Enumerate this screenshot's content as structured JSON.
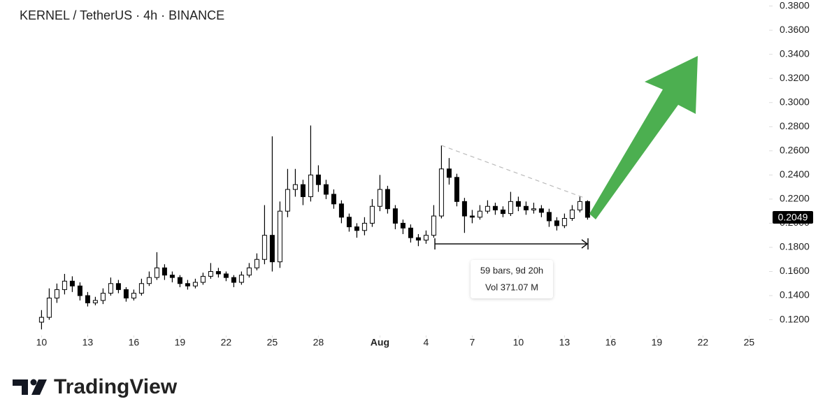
{
  "chart_data": {
    "type": "candlestick",
    "title": "KERNEL / TetherUS · 4h · BINANCE",
    "x": [
      0,
      0.5,
      1,
      1.5,
      2,
      2.5,
      3,
      3.5,
      4,
      4.5,
      5,
      5.5,
      6,
      6.5,
      7,
      7.5,
      8,
      8.5,
      9,
      9.5,
      10,
      10.5,
      11,
      11.5,
      12,
      12.5,
      13,
      13.5,
      14,
      14.5,
      15,
      15.5,
      16,
      16.5,
      17,
      17.5,
      18,
      18.5,
      19,
      19.5,
      20,
      20.5,
      21,
      21.5,
      22,
      22.5,
      23,
      23.5,
      24,
      24.5,
      25,
      25.5,
      26,
      26.5,
      27,
      27.5,
      28,
      28.5,
      29,
      29.5,
      30,
      30.5,
      31,
      31.5,
      32,
      32.5,
      33,
      33.5,
      34,
      34.5,
      35,
      35.5
    ],
    "open": [
      0.118,
      0.122,
      0.138,
      0.145,
      0.152,
      0.148,
      0.14,
      0.134,
      0.136,
      0.142,
      0.15,
      0.145,
      0.138,
      0.142,
      0.15,
      0.155,
      0.163,
      0.157,
      0.155,
      0.15,
      0.148,
      0.151,
      0.156,
      0.16,
      0.158,
      0.155,
      0.151,
      0.157,
      0.163,
      0.17,
      0.19,
      0.168,
      0.21,
      0.228,
      0.232,
      0.222,
      0.24,
      0.232,
      0.224,
      0.216,
      0.205,
      0.197,
      0.194,
      0.2,
      0.214,
      0.228,
      0.212,
      0.2,
      0.196,
      0.188,
      0.186,
      0.19,
      0.206,
      0.245,
      0.238,
      0.218,
      0.206,
      0.205,
      0.21,
      0.214,
      0.211,
      0.208,
      0.218,
      0.214,
      0.211,
      0.212,
      0.209,
      0.202,
      0.198,
      0.204,
      0.211,
      0.218
    ],
    "high": [
      0.128,
      0.146,
      0.15,
      0.158,
      0.156,
      0.151,
      0.143,
      0.139,
      0.146,
      0.155,
      0.153,
      0.147,
      0.145,
      0.154,
      0.16,
      0.176,
      0.166,
      0.16,
      0.157,
      0.153,
      0.154,
      0.159,
      0.167,
      0.163,
      0.16,
      0.157,
      0.16,
      0.167,
      0.175,
      0.215,
      0.272,
      0.218,
      0.245,
      0.245,
      0.236,
      0.281,
      0.248,
      0.236,
      0.228,
      0.219,
      0.208,
      0.2,
      0.205,
      0.22,
      0.24,
      0.231,
      0.215,
      0.203,
      0.199,
      0.191,
      0.194,
      0.215,
      0.2645,
      0.254,
      0.241,
      0.221,
      0.211,
      0.215,
      0.219,
      0.217,
      0.214,
      0.226,
      0.222,
      0.218,
      0.217,
      0.215,
      0.212,
      0.205,
      0.208,
      0.215,
      0.222,
      0.219
    ],
    "low": [
      0.112,
      0.12,
      0.134,
      0.141,
      0.143,
      0.136,
      0.131,
      0.132,
      0.133,
      0.14,
      0.142,
      0.135,
      0.136,
      0.14,
      0.148,
      0.153,
      0.153,
      0.151,
      0.147,
      0.145,
      0.146,
      0.149,
      0.154,
      0.155,
      0.152,
      0.147,
      0.149,
      0.155,
      0.161,
      0.166,
      0.16,
      0.163,
      0.205,
      0.222,
      0.215,
      0.218,
      0.226,
      0.22,
      0.212,
      0.2,
      0.193,
      0.188,
      0.19,
      0.197,
      0.21,
      0.208,
      0.195,
      0.191,
      0.184,
      0.181,
      0.183,
      0.188,
      0.204,
      0.232,
      0.214,
      0.192,
      0.2,
      0.203,
      0.208,
      0.207,
      0.205,
      0.206,
      0.21,
      0.207,
      0.208,
      0.205,
      0.197,
      0.194,
      0.196,
      0.202,
      0.209,
      0.203
    ],
    "close": [
      0.122,
      0.138,
      0.145,
      0.152,
      0.148,
      0.14,
      0.134,
      0.136,
      0.142,
      0.15,
      0.145,
      0.138,
      0.142,
      0.15,
      0.155,
      0.163,
      0.157,
      0.155,
      0.15,
      0.148,
      0.151,
      0.156,
      0.16,
      0.158,
      0.155,
      0.151,
      0.157,
      0.163,
      0.17,
      0.19,
      0.168,
      0.21,
      0.228,
      0.232,
      0.222,
      0.24,
      0.232,
      0.224,
      0.216,
      0.205,
      0.197,
      0.194,
      0.2,
      0.214,
      0.228,
      0.212,
      0.2,
      0.196,
      0.188,
      0.186,
      0.19,
      0.206,
      0.245,
      0.238,
      0.218,
      0.206,
      0.205,
      0.21,
      0.214,
      0.211,
      0.208,
      0.218,
      0.214,
      0.211,
      0.212,
      0.209,
      0.202,
      0.198,
      0.204,
      0.211,
      0.218,
      0.2049
    ],
    "up_color": "#ffffff",
    "down_color": "#000000",
    "wick_color": "#000000",
    "xlim": [
      -2.7,
      47.3
    ],
    "xticks": [
      {
        "value": 0,
        "label": "10"
      },
      {
        "value": 3,
        "label": "13"
      },
      {
        "value": 6,
        "label": "16"
      },
      {
        "value": 9,
        "label": "19"
      },
      {
        "value": 12,
        "label": "22"
      },
      {
        "value": 15,
        "label": "25"
      },
      {
        "value": 18,
        "label": "28"
      },
      {
        "value": 22,
        "label": "Aug"
      },
      {
        "value": 25,
        "label": "4"
      },
      {
        "value": 28,
        "label": "7"
      },
      {
        "value": 31,
        "label": "10"
      },
      {
        "value": 34,
        "label": "13"
      },
      {
        "value": 37,
        "label": "16"
      },
      {
        "value": 40,
        "label": "19"
      },
      {
        "value": 43,
        "label": "22"
      },
      {
        "value": 46,
        "label": "25"
      }
    ],
    "ylim": [
      0.107,
      0.385
    ],
    "yticks": [
      {
        "value": 0.12,
        "label": "0.1200"
      },
      {
        "value": 0.14,
        "label": "0.1400"
      },
      {
        "value": 0.16,
        "label": "0.1600"
      },
      {
        "value": 0.18,
        "label": "0.1800"
      },
      {
        "value": 0.2,
        "label": "0.2000"
      },
      {
        "value": 0.22,
        "label": "0.2200"
      },
      {
        "value": 0.24,
        "label": "0.2400"
      },
      {
        "value": 0.26,
        "label": "0.2600"
      },
      {
        "value": 0.28,
        "label": "0.2800"
      },
      {
        "value": 0.3,
        "label": "0.3000"
      },
      {
        "value": 0.32,
        "label": "0.3200"
      },
      {
        "value": 0.34,
        "label": "0.3400"
      },
      {
        "value": 0.36,
        "label": "0.3600"
      },
      {
        "value": 0.38,
        "label": "0.3800"
      }
    ],
    "last_price": 0.2049,
    "range_label": "59 bars, 9d 20h",
    "volume_label": "Vol 371.07 M",
    "branding": "TradingView"
  }
}
